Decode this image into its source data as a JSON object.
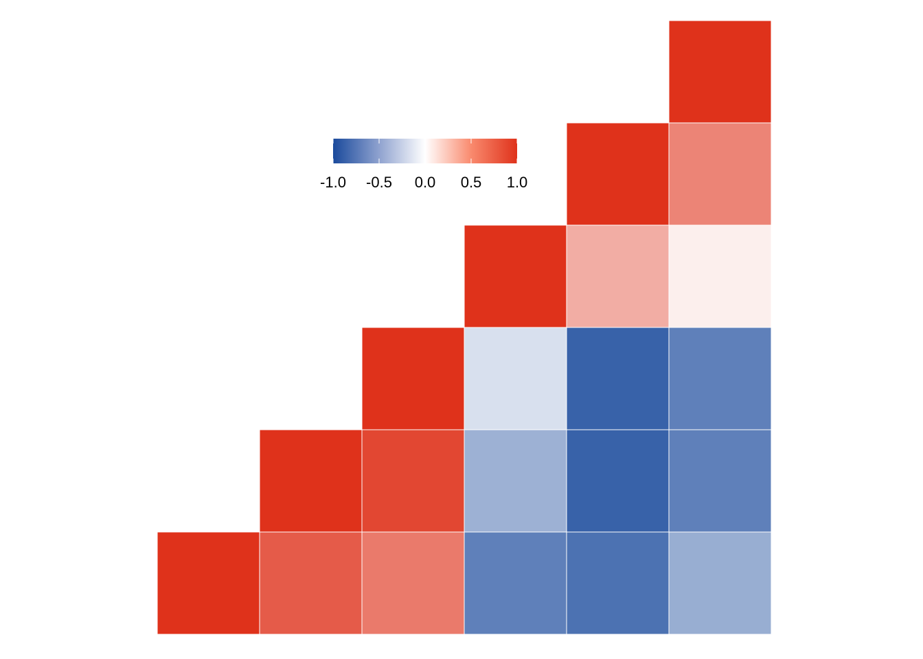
{
  "chart_data": {
    "type": "heatmap",
    "title": "",
    "xlabel": "",
    "ylabel": "",
    "layout": "upper-triangle correlation matrix",
    "value_range": [
      -1,
      1
    ],
    "rows": 6,
    "cols": 6,
    "cells": [
      {
        "row": 0,
        "col": 5,
        "value": 1.0
      },
      {
        "row": 1,
        "col": 4,
        "value": 1.0
      },
      {
        "row": 1,
        "col": 5,
        "value": 0.6
      },
      {
        "row": 2,
        "col": 3,
        "value": 1.0
      },
      {
        "row": 2,
        "col": 4,
        "value": 0.4
      },
      {
        "row": 2,
        "col": 5,
        "value": 0.08
      },
      {
        "row": 3,
        "col": 2,
        "value": 1.0
      },
      {
        "row": 3,
        "col": 3,
        "value": -0.17
      },
      {
        "row": 3,
        "col": 4,
        "value": -0.87
      },
      {
        "row": 3,
        "col": 5,
        "value": -0.7
      },
      {
        "row": 4,
        "col": 1,
        "value": 1.0
      },
      {
        "row": 4,
        "col": 2,
        "value": 0.9
      },
      {
        "row": 4,
        "col": 3,
        "value": -0.43
      },
      {
        "row": 4,
        "col": 4,
        "value": -0.87
      },
      {
        "row": 4,
        "col": 5,
        "value": -0.7
      },
      {
        "row": 5,
        "col": 0,
        "value": 1.0
      },
      {
        "row": 5,
        "col": 1,
        "value": 0.8
      },
      {
        "row": 5,
        "col": 2,
        "value": 0.65
      },
      {
        "row": 5,
        "col": 3,
        "value": -0.7
      },
      {
        "row": 5,
        "col": 4,
        "value": -0.78
      },
      {
        "row": 5,
        "col": 5,
        "value": -0.45
      }
    ],
    "colorbar": {
      "placement": "top-center",
      "ticks": [
        -1.0,
        -0.5,
        0.0,
        0.5,
        1.0
      ],
      "tick_labels": [
        "-1.0",
        "-0.5",
        "0.0",
        "0.5",
        "1.0"
      ],
      "colors": {
        "low": "#1a4a9c",
        "mid": "#ffffff",
        "high": "#df321b"
      }
    }
  }
}
